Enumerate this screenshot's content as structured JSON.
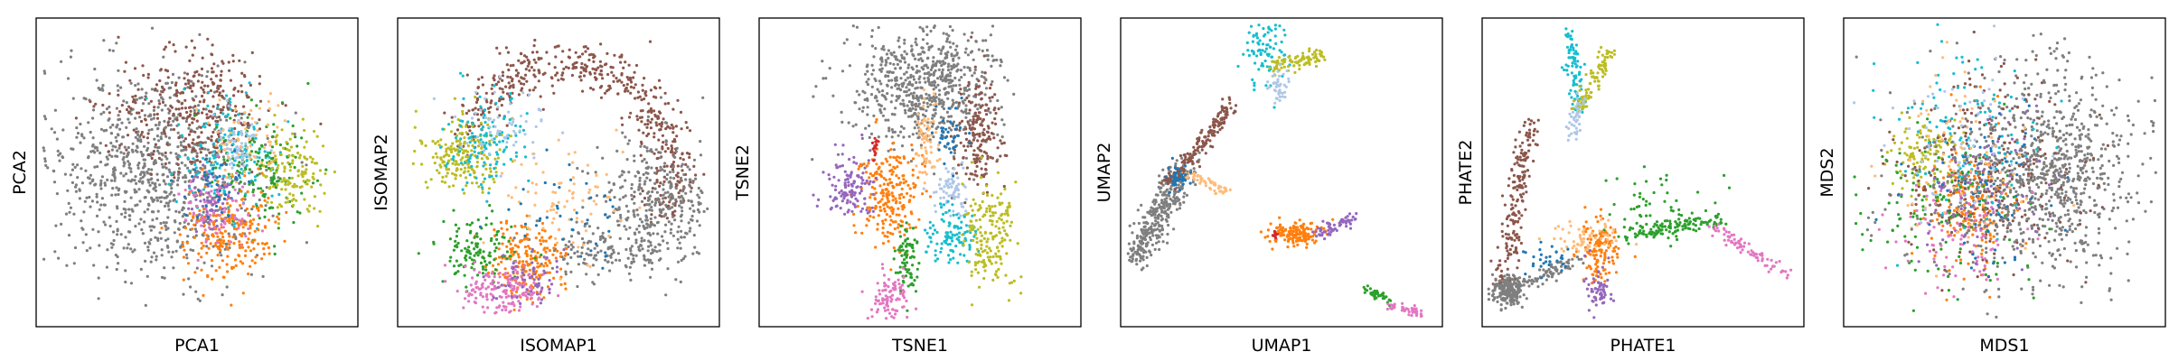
{
  "palette": {
    "blue": "#1f77b4",
    "orange": "#ff7f0e",
    "green": "#2ca02c",
    "red": "#d62728",
    "purple": "#9467bd",
    "brown": "#8c564b",
    "pink": "#e377c2",
    "gray": "#7f7f7f",
    "olive": "#bcbd22",
    "cyan": "#17becf",
    "lightblue": "#aec7e8",
    "peach": "#ffbb78"
  },
  "chart_data": [
    {
      "type": "scatter",
      "xlabel": "PCA1",
      "ylabel": "PCA2",
      "xticks": [],
      "yticks": [],
      "grid": false,
      "legend": "none",
      "clusters": [
        {
          "color": "gray",
          "cx": 0.36,
          "cy": 0.5,
          "sx": 0.16,
          "sy": 0.17,
          "n": 900
        },
        {
          "color": "brown",
          "cx": 0.5,
          "cy": 0.3,
          "sx": 0.12,
          "sy": 0.1,
          "n": 350
        },
        {
          "color": "cyan",
          "cx": 0.6,
          "cy": 0.45,
          "sx": 0.08,
          "sy": 0.09,
          "n": 150
        },
        {
          "color": "green",
          "cx": 0.7,
          "cy": 0.5,
          "sx": 0.07,
          "sy": 0.1,
          "n": 150
        },
        {
          "color": "olive",
          "cx": 0.8,
          "cy": 0.5,
          "sx": 0.05,
          "sy": 0.07,
          "n": 130
        },
        {
          "color": "orange",
          "cx": 0.6,
          "cy": 0.7,
          "sx": 0.07,
          "sy": 0.08,
          "n": 220
        },
        {
          "color": "pink",
          "cx": 0.56,
          "cy": 0.62,
          "sx": 0.05,
          "sy": 0.06,
          "n": 100
        },
        {
          "color": "purple",
          "cx": 0.55,
          "cy": 0.6,
          "sx": 0.04,
          "sy": 0.05,
          "n": 60
        },
        {
          "color": "lightblue",
          "cx": 0.62,
          "cy": 0.4,
          "sx": 0.04,
          "sy": 0.05,
          "n": 60
        },
        {
          "color": "peach",
          "cx": 0.66,
          "cy": 0.4,
          "sx": 0.06,
          "sy": 0.06,
          "n": 60
        },
        {
          "color": "blue",
          "cx": 0.56,
          "cy": 0.55,
          "sx": 0.06,
          "sy": 0.06,
          "n": 40
        }
      ]
    },
    {
      "type": "scatter",
      "xlabel": "ISOMAP1",
      "ylabel": "ISOMAP2",
      "xticks": [],
      "yticks": [],
      "grid": false,
      "legend": "none",
      "clusters": [
        {
          "color": "brown",
          "arc": [
            0.52,
            0.5,
            0.33,
            0.35,
            200,
            380
          ],
          "w": 0.04,
          "n": 500
        },
        {
          "color": "gray",
          "cx": 0.8,
          "cy": 0.6,
          "sx": 0.09,
          "sy": 0.1,
          "n": 350
        },
        {
          "color": "gray",
          "cx": 0.63,
          "cy": 0.75,
          "sx": 0.08,
          "sy": 0.04,
          "n": 120
        },
        {
          "color": "olive",
          "cx": 0.2,
          "cy": 0.45,
          "sx": 0.06,
          "sy": 0.06,
          "n": 200
        },
        {
          "color": "cyan",
          "cx": 0.28,
          "cy": 0.4,
          "sx": 0.06,
          "sy": 0.08,
          "n": 120
        },
        {
          "color": "lightblue",
          "cx": 0.33,
          "cy": 0.35,
          "sx": 0.06,
          "sy": 0.06,
          "n": 60
        },
        {
          "color": "orange",
          "cx": 0.4,
          "cy": 0.78,
          "sx": 0.06,
          "sy": 0.06,
          "n": 200
        },
        {
          "color": "green",
          "cx": 0.25,
          "cy": 0.75,
          "sx": 0.06,
          "sy": 0.05,
          "n": 130
        },
        {
          "color": "pink",
          "cx": 0.33,
          "cy": 0.88,
          "sx": 0.07,
          "sy": 0.04,
          "n": 160
        },
        {
          "color": "purple",
          "cx": 0.4,
          "cy": 0.85,
          "sx": 0.05,
          "sy": 0.04,
          "n": 60
        },
        {
          "color": "peach",
          "cx": 0.52,
          "cy": 0.6,
          "sx": 0.1,
          "sy": 0.08,
          "n": 80
        },
        {
          "color": "blue",
          "cx": 0.55,
          "cy": 0.65,
          "sx": 0.1,
          "sy": 0.08,
          "n": 40
        }
      ]
    },
    {
      "type": "scatter",
      "xlabel": "TSNE1",
      "ylabel": "TSNE2",
      "xticks": [],
      "yticks": [],
      "grid": false,
      "legend": "none",
      "clusters": [
        {
          "color": "gray",
          "cx": 0.52,
          "cy": 0.22,
          "sx": 0.11,
          "sy": 0.11,
          "n": 700
        },
        {
          "color": "brown",
          "cx": 0.68,
          "cy": 0.38,
          "sx": 0.03,
          "sy": 0.09,
          "n": 180
        },
        {
          "color": "orange",
          "cx": 0.4,
          "cy": 0.58,
          "sx": 0.05,
          "sy": 0.08,
          "n": 230
        },
        {
          "color": "purple",
          "cx": 0.28,
          "cy": 0.55,
          "sx": 0.04,
          "sy": 0.05,
          "n": 120
        },
        {
          "color": "peach",
          "cx": 0.52,
          "cy": 0.4,
          "sx": 0.02,
          "sy": 0.07,
          "n": 70
        },
        {
          "color": "lightblue",
          "cx": 0.6,
          "cy": 0.56,
          "sx": 0.03,
          "sy": 0.04,
          "n": 70
        },
        {
          "color": "cyan",
          "cx": 0.6,
          "cy": 0.7,
          "sx": 0.04,
          "sy": 0.05,
          "n": 110
        },
        {
          "color": "olive",
          "cx": 0.72,
          "cy": 0.7,
          "sx": 0.04,
          "sy": 0.09,
          "n": 180
        },
        {
          "color": "green",
          "cx": 0.46,
          "cy": 0.78,
          "sx": 0.02,
          "sy": 0.06,
          "n": 80
        },
        {
          "color": "pink",
          "cx": 0.41,
          "cy": 0.9,
          "sx": 0.03,
          "sy": 0.04,
          "n": 90
        },
        {
          "color": "blue",
          "cx": 0.59,
          "cy": 0.38,
          "sx": 0.02,
          "sy": 0.05,
          "n": 40
        },
        {
          "color": "red",
          "cx": 0.36,
          "cy": 0.42,
          "sx": 0.005,
          "sy": 0.02,
          "n": 15
        }
      ]
    },
    {
      "type": "scatter",
      "xlabel": "UMAP1",
      "ylabel": "UMAP2",
      "xticks": [],
      "yticks": [],
      "grid": false,
      "legend": "none",
      "clusters": [
        {
          "color": "gray",
          "line": [
            0.05,
            0.78,
            0.2,
            0.48
          ],
          "w": 0.025,
          "n": 350
        },
        {
          "color": "brown",
          "line": [
            0.14,
            0.55,
            0.35,
            0.28
          ],
          "w": 0.012,
          "n": 180
        },
        {
          "color": "peach",
          "line": [
            0.2,
            0.5,
            0.33,
            0.56
          ],
          "w": 0.008,
          "n": 50
        },
        {
          "color": "blue",
          "cx": 0.18,
          "cy": 0.52,
          "sx": 0.02,
          "sy": 0.02,
          "n": 40
        },
        {
          "color": "cyan",
          "cx": 0.45,
          "cy": 0.1,
          "sx": 0.03,
          "sy": 0.06,
          "n": 90
        },
        {
          "color": "olive",
          "line": [
            0.47,
            0.16,
            0.62,
            0.12
          ],
          "w": 0.012,
          "n": 90
        },
        {
          "color": "lightblue",
          "cx": 0.49,
          "cy": 0.22,
          "sx": 0.015,
          "sy": 0.03,
          "n": 40
        },
        {
          "color": "orange",
          "cx": 0.55,
          "cy": 0.7,
          "sx": 0.04,
          "sy": 0.02,
          "n": 150
        },
        {
          "color": "purple",
          "line": [
            0.62,
            0.7,
            0.72,
            0.65
          ],
          "w": 0.012,
          "n": 60
        },
        {
          "color": "red",
          "cx": 0.48,
          "cy": 0.7,
          "sx": 0.004,
          "sy": 0.01,
          "n": 10
        },
        {
          "color": "green",
          "line": [
            0.76,
            0.88,
            0.84,
            0.92
          ],
          "w": 0.008,
          "n": 40
        },
        {
          "color": "pink",
          "line": [
            0.83,
            0.93,
            0.95,
            0.96
          ],
          "w": 0.008,
          "n": 40
        }
      ]
    },
    {
      "type": "scatter",
      "xlabel": "PHATE1",
      "ylabel": "PHATE2",
      "xticks": [],
      "yticks": [],
      "grid": false,
      "legend": "none",
      "clusters": [
        {
          "color": "brown",
          "line": [
            0.06,
            0.88,
            0.15,
            0.32
          ],
          "w": 0.018,
          "n": 200
        },
        {
          "color": "gray",
          "cx": 0.08,
          "cy": 0.88,
          "sx": 0.025,
          "sy": 0.025,
          "n": 180
        },
        {
          "color": "gray",
          "line": [
            0.06,
            0.9,
            0.3,
            0.78
          ],
          "w": 0.012,
          "n": 100
        },
        {
          "color": "orange",
          "cx": 0.36,
          "cy": 0.75,
          "sx": 0.03,
          "sy": 0.05,
          "n": 140
        },
        {
          "color": "purple",
          "cx": 0.36,
          "cy": 0.88,
          "sx": 0.02,
          "sy": 0.04,
          "n": 60
        },
        {
          "color": "peach",
          "cx": 0.32,
          "cy": 0.72,
          "sx": 0.05,
          "sy": 0.03,
          "n": 60
        },
        {
          "color": "cyan",
          "line": [
            0.27,
            0.05,
            0.3,
            0.3
          ],
          "w": 0.012,
          "n": 90
        },
        {
          "color": "olive",
          "line": [
            0.3,
            0.3,
            0.4,
            0.1
          ],
          "w": 0.012,
          "n": 90
        },
        {
          "color": "lightblue",
          "line": [
            0.28,
            0.4,
            0.3,
            0.25
          ],
          "w": 0.01,
          "n": 40
        },
        {
          "color": "green",
          "line": [
            0.45,
            0.7,
            0.75,
            0.65
          ],
          "w": 0.014,
          "n": 130
        },
        {
          "color": "green",
          "cx": 0.55,
          "cy": 0.6,
          "sx": 0.09,
          "sy": 0.06,
          "n": 50
        },
        {
          "color": "pink",
          "line": [
            0.72,
            0.68,
            0.95,
            0.83
          ],
          "w": 0.012,
          "n": 80
        },
        {
          "color": "blue",
          "cx": 0.2,
          "cy": 0.78,
          "sx": 0.04,
          "sy": 0.03,
          "n": 30
        }
      ]
    },
    {
      "type": "scatter",
      "xlabel": "MDS1",
      "ylabel": "MDS2",
      "xticks": [],
      "yticks": [],
      "grid": false,
      "legend": "none",
      "clusters": [
        {
          "color": "gray",
          "cx": 0.66,
          "cy": 0.5,
          "sx": 0.12,
          "sy": 0.16,
          "n": 700
        },
        {
          "color": "olive",
          "cx": 0.25,
          "cy": 0.45,
          "sx": 0.05,
          "sy": 0.06,
          "n": 120
        },
        {
          "color": "orange",
          "cx": 0.4,
          "cy": 0.62,
          "sx": 0.06,
          "sy": 0.1,
          "n": 180
        },
        {
          "color": "brown",
          "cx": 0.45,
          "cy": 0.5,
          "sx": 0.14,
          "sy": 0.16,
          "n": 260
        },
        {
          "color": "cyan",
          "cx": 0.4,
          "cy": 0.4,
          "sx": 0.12,
          "sy": 0.14,
          "n": 120
        },
        {
          "color": "green",
          "cx": 0.3,
          "cy": 0.6,
          "sx": 0.12,
          "sy": 0.13,
          "n": 120
        },
        {
          "color": "pink",
          "cx": 0.35,
          "cy": 0.7,
          "sx": 0.1,
          "sy": 0.1,
          "n": 100
        },
        {
          "color": "purple",
          "cx": 0.42,
          "cy": 0.55,
          "sx": 0.1,
          "sy": 0.12,
          "n": 80
        },
        {
          "color": "blue",
          "cx": 0.45,
          "cy": 0.55,
          "sx": 0.12,
          "sy": 0.14,
          "n": 80
        },
        {
          "color": "peach",
          "cx": 0.38,
          "cy": 0.45,
          "sx": 0.12,
          "sy": 0.14,
          "n": 80
        },
        {
          "color": "lightblue",
          "cx": 0.35,
          "cy": 0.4,
          "sx": 0.1,
          "sy": 0.12,
          "n": 60
        },
        {
          "color": "gray",
          "cx": 0.5,
          "cy": 0.5,
          "sx": 0.18,
          "sy": 0.18,
          "n": 250
        }
      ]
    }
  ]
}
